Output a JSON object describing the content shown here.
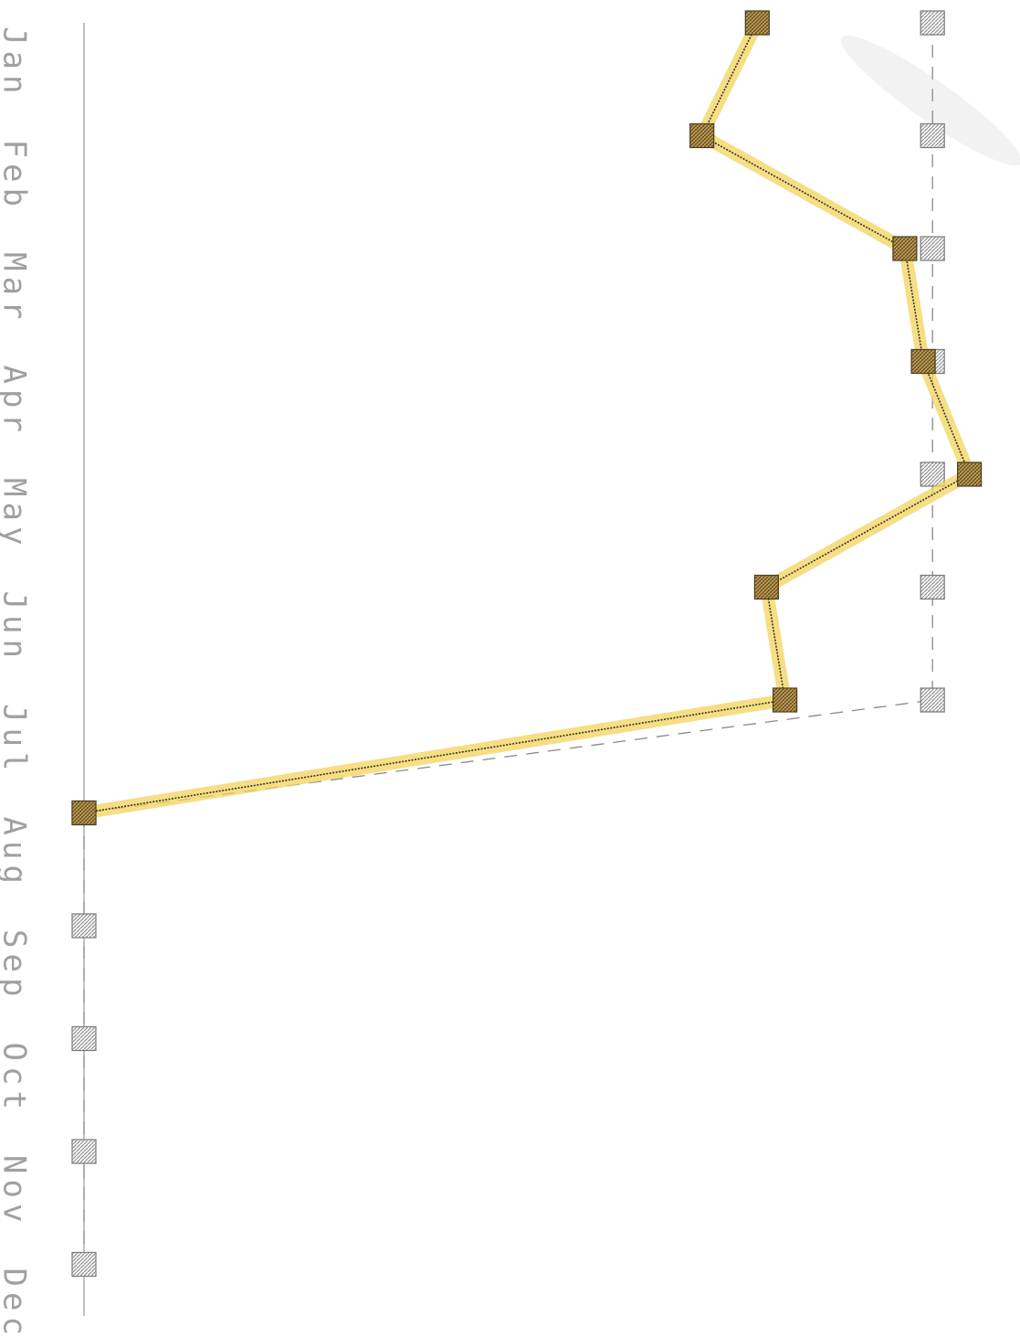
{
  "chart_data": {
    "type": "line",
    "orientation": "rotated-90",
    "categories": [
      "Jan",
      "Feb",
      "Mar",
      "Apr",
      "May",
      "Jun",
      "Jul",
      "Aug",
      "Sep",
      "Oct",
      "Nov",
      "Dec"
    ],
    "series": [
      {
        "style": "solid-highlighted",
        "color": "#b08a3e",
        "highlight_color": "#f3d35c",
        "values": [
          0.73,
          0.67,
          0.89,
          0.91,
          0.96,
          0.74,
          0.76,
          0.0,
          null,
          null,
          null,
          null
        ]
      },
      {
        "style": "dashed",
        "color": "#8a8a8a",
        "values": [
          0.92,
          0.92,
          0.92,
          0.92,
          0.92,
          0.92,
          0.92,
          0.0,
          0.0,
          0.0,
          0.0,
          0.0
        ]
      }
    ],
    "ylim": [
      0,
      1
    ],
    "grid": false,
    "legend": "none"
  }
}
